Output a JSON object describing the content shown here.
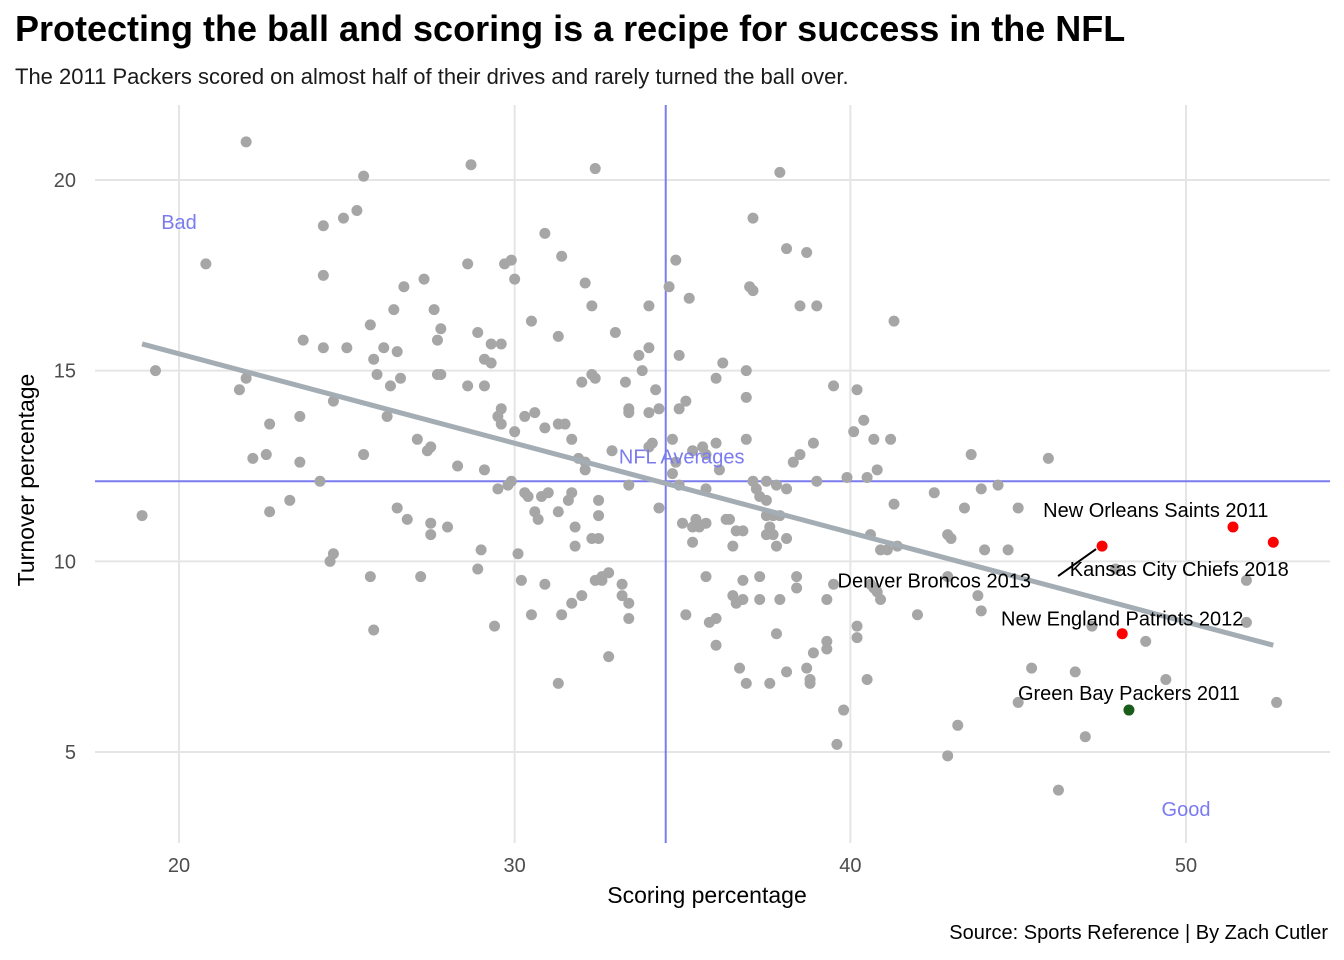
{
  "header": {
    "title": "Protecting the ball and scoring is a recipe for success in the NFL",
    "subtitle": "The 2011 Packers scored on almost half of their drives and rarely turned the ball over.",
    "caption": "Source: Sports Reference | By Zach Cutler"
  },
  "chart_data": {
    "type": "scatter",
    "xlabel": "Scoring percentage",
    "ylabel": "Turnover percentage",
    "xlim": [
      17.5,
      54.5
    ],
    "ylim": [
      2.8,
      21.7
    ],
    "x_ticks": [
      20,
      30,
      40,
      50
    ],
    "y_ticks": [
      5,
      10,
      15,
      20
    ],
    "grid": true,
    "colors": {
      "points": "#a6a6a6",
      "highlight": "#ff0000",
      "packers": "#1a5c1a",
      "trend": "#a3adb3",
      "average_lines": "#7b7bf0",
      "grid": "#e5e5e5"
    },
    "averages": {
      "x": 34.5,
      "y": 12.1,
      "label": "NFL Averages"
    },
    "trend_line": {
      "x": [
        18.9,
        52.6
      ],
      "y": [
        15.7,
        7.8
      ]
    },
    "quadrant_labels": [
      {
        "text": "Bad",
        "x": 20,
        "y": 18.9
      },
      {
        "text": "Good",
        "x": 50,
        "y": 3.5
      }
    ],
    "highlighted": [
      {
        "name": "New Orleans Saints 2011",
        "x": 51.4,
        "y": 10.9,
        "color": "#ff0000",
        "label_x": 49.1,
        "label_y": 11.35
      },
      {
        "name": "Kansas City Chiefs 2018",
        "x": 52.6,
        "y": 10.5,
        "color": "#ff0000",
        "label_x": 49.8,
        "label_y": 9.8
      },
      {
        "name": "Denver Broncos 2013",
        "x": 47.5,
        "y": 10.4,
        "color": "#ff0000",
        "label_x": 42.5,
        "label_y": 9.5
      },
      {
        "name": "New England Patriots 2012",
        "x": 48.1,
        "y": 8.1,
        "color": "#ff0000",
        "label_x": 48.1,
        "label_y": 8.5
      },
      {
        "name": "Green Bay Packers 2011",
        "x": 48.3,
        "y": 6.1,
        "color": "#1a5c1a",
        "label_x": 48.3,
        "label_y": 6.55
      }
    ],
    "points": [
      [
        18.9,
        11.2
      ],
      [
        19.3,
        15.0
      ],
      [
        20.8,
        17.8
      ],
      [
        22.0,
        21.0
      ],
      [
        21.8,
        14.5
      ],
      [
        22.0,
        14.8
      ],
      [
        22.2,
        12.7
      ],
      [
        22.6,
        12.8
      ],
      [
        22.7,
        13.6
      ],
      [
        22.7,
        11.3
      ],
      [
        23.3,
        11.6
      ],
      [
        23.6,
        13.8
      ],
      [
        23.6,
        12.6
      ],
      [
        23.7,
        15.8
      ],
      [
        24.2,
        12.1
      ],
      [
        24.3,
        18.8
      ],
      [
        24.3,
        17.5
      ],
      [
        24.3,
        15.6
      ],
      [
        24.6,
        14.2
      ],
      [
        24.5,
        10.0
      ],
      [
        24.6,
        10.2
      ],
      [
        24.9,
        19.0
      ],
      [
        25.0,
        15.6
      ],
      [
        25.3,
        19.2
      ],
      [
        25.5,
        20.1
      ],
      [
        25.5,
        12.8
      ],
      [
        25.7,
        16.2
      ],
      [
        25.7,
        9.6
      ],
      [
        25.8,
        15.3
      ],
      [
        25.8,
        8.2
      ],
      [
        25.9,
        14.9
      ],
      [
        26.1,
        15.6
      ],
      [
        26.2,
        13.8
      ],
      [
        26.3,
        14.6
      ],
      [
        26.4,
        16.6
      ],
      [
        26.5,
        15.5
      ],
      [
        26.5,
        11.4
      ],
      [
        26.6,
        14.8
      ],
      [
        26.7,
        17.2
      ],
      [
        26.8,
        11.1
      ],
      [
        27.1,
        13.2
      ],
      [
        27.2,
        9.6
      ],
      [
        27.3,
        17.4
      ],
      [
        27.4,
        12.9
      ],
      [
        27.5,
        13.0
      ],
      [
        27.5,
        10.7
      ],
      [
        27.5,
        11.0
      ],
      [
        27.6,
        16.6
      ],
      [
        27.7,
        15.8
      ],
      [
        27.7,
        14.9
      ],
      [
        27.8,
        14.9
      ],
      [
        27.8,
        16.1
      ],
      [
        28.0,
        10.9
      ],
      [
        28.3,
        12.5
      ],
      [
        28.6,
        17.8
      ],
      [
        28.6,
        14.6
      ],
      [
        28.7,
        20.4
      ],
      [
        28.9,
        16.0
      ],
      [
        28.9,
        9.8
      ],
      [
        29.0,
        10.3
      ],
      [
        29.1,
        15.3
      ],
      [
        29.1,
        12.4
      ],
      [
        29.1,
        14.6
      ],
      [
        29.3,
        15.7
      ],
      [
        29.3,
        15.2
      ],
      [
        29.4,
        8.3
      ],
      [
        29.5,
        11.9
      ],
      [
        29.5,
        13.8
      ],
      [
        29.6,
        15.7
      ],
      [
        29.6,
        14.0
      ],
      [
        29.6,
        13.6
      ],
      [
        29.7,
        17.8
      ],
      [
        29.8,
        12.0
      ],
      [
        29.9,
        17.9
      ],
      [
        29.9,
        12.1
      ],
      [
        30.0,
        17.4
      ],
      [
        30.0,
        13.4
      ],
      [
        30.1,
        10.2
      ],
      [
        30.2,
        9.5
      ],
      [
        30.3,
        11.8
      ],
      [
        30.3,
        13.8
      ],
      [
        30.4,
        11.7
      ],
      [
        30.5,
        16.3
      ],
      [
        30.5,
        8.6
      ],
      [
        30.6,
        13.9
      ],
      [
        30.6,
        11.3
      ],
      [
        30.7,
        11.1
      ],
      [
        30.8,
        11.7
      ],
      [
        30.9,
        9.4
      ],
      [
        30.9,
        18.6
      ],
      [
        30.9,
        13.5
      ],
      [
        31.0,
        11.8
      ],
      [
        31.3,
        15.9
      ],
      [
        31.3,
        13.6
      ],
      [
        31.3,
        11.3
      ],
      [
        31.3,
        6.8
      ],
      [
        31.4,
        18.0
      ],
      [
        31.4,
        8.6
      ],
      [
        31.5,
        13.6
      ],
      [
        31.6,
        11.6
      ],
      [
        31.7,
        11.8
      ],
      [
        31.7,
        13.2
      ],
      [
        31.7,
        8.9
      ],
      [
        31.8,
        10.9
      ],
      [
        31.8,
        10.4
      ],
      [
        31.9,
        12.7
      ],
      [
        32.0,
        14.7
      ],
      [
        32.0,
        9.1
      ],
      [
        32.1,
        12.6
      ],
      [
        32.1,
        12.4
      ],
      [
        32.1,
        17.3
      ],
      [
        32.3,
        16.7
      ],
      [
        32.3,
        14.9
      ],
      [
        32.3,
        10.6
      ],
      [
        32.4,
        20.3
      ],
      [
        32.4,
        14.8
      ],
      [
        32.4,
        9.5
      ],
      [
        32.5,
        11.6
      ],
      [
        32.5,
        11.2
      ],
      [
        32.5,
        10.6
      ],
      [
        32.6,
        9.6
      ],
      [
        32.6,
        9.5
      ],
      [
        32.8,
        9.7
      ],
      [
        32.8,
        7.5
      ],
      [
        32.9,
        12.9
      ],
      [
        33.0,
        16.0
      ],
      [
        33.2,
        9.4
      ],
      [
        33.2,
        9.1
      ],
      [
        33.3,
        14.7
      ],
      [
        33.4,
        13.9
      ],
      [
        33.4,
        14.0
      ],
      [
        33.4,
        12.0
      ],
      [
        33.4,
        8.9
      ],
      [
        33.4,
        8.5
      ],
      [
        33.7,
        15.4
      ],
      [
        33.8,
        15.0
      ],
      [
        34.0,
        16.7
      ],
      [
        34.0,
        15.6
      ],
      [
        34.0,
        13.0
      ],
      [
        34.0,
        13.9
      ],
      [
        34.1,
        13.1
      ],
      [
        34.2,
        14.5
      ],
      [
        34.3,
        11.4
      ],
      [
        34.3,
        14.0
      ],
      [
        34.6,
        17.2
      ],
      [
        34.7,
        13.2
      ],
      [
        34.7,
        12.3
      ],
      [
        34.8,
        17.9
      ],
      [
        34.8,
        12.6
      ],
      [
        34.9,
        15.4
      ],
      [
        34.9,
        14.0
      ],
      [
        34.9,
        12.0
      ],
      [
        35.0,
        11.0
      ],
      [
        35.1,
        8.6
      ],
      [
        35.1,
        14.2
      ],
      [
        35.2,
        16.9
      ],
      [
        35.3,
        12.9
      ],
      [
        35.3,
        10.9
      ],
      [
        35.3,
        10.5
      ],
      [
        35.4,
        11.1
      ],
      [
        35.5,
        10.9
      ],
      [
        35.6,
        13.0
      ],
      [
        35.7,
        12.8
      ],
      [
        35.7,
        11.9
      ],
      [
        35.7,
        11.0
      ],
      [
        35.7,
        9.6
      ],
      [
        35.8,
        8.4
      ],
      [
        36.0,
        13.1
      ],
      [
        36.0,
        14.8
      ],
      [
        36.0,
        7.8
      ],
      [
        36.0,
        8.5
      ],
      [
        36.1,
        12.4
      ],
      [
        36.2,
        15.2
      ],
      [
        36.3,
        11.1
      ],
      [
        36.4,
        11.1
      ],
      [
        36.5,
        10.4
      ],
      [
        36.5,
        9.1
      ],
      [
        36.6,
        10.8
      ],
      [
        36.6,
        8.9
      ],
      [
        36.7,
        7.2
      ],
      [
        36.8,
        10.8
      ],
      [
        36.8,
        9.5
      ],
      [
        36.8,
        9.0
      ],
      [
        36.9,
        15.0
      ],
      [
        36.9,
        14.3
      ],
      [
        36.9,
        13.2
      ],
      [
        36.9,
        6.8
      ],
      [
        37.0,
        17.2
      ],
      [
        37.1,
        17.1
      ],
      [
        37.1,
        19.0
      ],
      [
        37.1,
        12.1
      ],
      [
        37.2,
        11.9
      ],
      [
        37.3,
        11.7
      ],
      [
        37.3,
        9.6
      ],
      [
        37.3,
        9.0
      ],
      [
        37.5,
        12.1
      ],
      [
        37.5,
        11.6
      ],
      [
        37.5,
        10.7
      ],
      [
        37.5,
        11.2
      ],
      [
        37.6,
        6.8
      ],
      [
        37.6,
        10.9
      ],
      [
        37.7,
        10.7
      ],
      [
        37.7,
        11.2
      ],
      [
        37.8,
        12.0
      ],
      [
        37.8,
        10.4
      ],
      [
        37.8,
        8.1
      ],
      [
        37.9,
        20.2
      ],
      [
        37.9,
        11.2
      ],
      [
        37.9,
        9.0
      ],
      [
        38.1,
        18.2
      ],
      [
        38.1,
        11.9
      ],
      [
        38.1,
        10.6
      ],
      [
        38.1,
        7.1
      ],
      [
        38.3,
        12.6
      ],
      [
        38.4,
        9.6
      ],
      [
        38.4,
        9.3
      ],
      [
        38.5,
        12.8
      ],
      [
        38.5,
        16.7
      ],
      [
        38.7,
        18.1
      ],
      [
        38.7,
        7.2
      ],
      [
        38.8,
        6.9
      ],
      [
        38.8,
        6.8
      ],
      [
        38.9,
        7.6
      ],
      [
        38.9,
        13.1
      ],
      [
        39.0,
        12.1
      ],
      [
        39.0,
        16.7
      ],
      [
        39.3,
        7.9
      ],
      [
        39.3,
        9.0
      ],
      [
        39.3,
        7.7
      ],
      [
        39.5,
        9.4
      ],
      [
        39.5,
        14.6
      ],
      [
        39.6,
        5.2
      ],
      [
        39.8,
        6.1
      ],
      [
        39.9,
        12.2
      ],
      [
        40.1,
        13.4
      ],
      [
        40.2,
        14.5
      ],
      [
        40.2,
        8.3
      ],
      [
        40.2,
        8.0
      ],
      [
        40.4,
        13.7
      ],
      [
        40.5,
        6.9
      ],
      [
        40.5,
        12.2
      ],
      [
        40.6,
        9.4
      ],
      [
        40.6,
        10.7
      ],
      [
        40.7,
        9.3
      ],
      [
        40.7,
        13.2
      ],
      [
        40.8,
        9.2
      ],
      [
        40.8,
        12.4
      ],
      [
        40.9,
        9.0
      ],
      [
        40.9,
        10.3
      ],
      [
        41.1,
        10.3
      ],
      [
        41.3,
        11.5
      ],
      [
        41.4,
        10.4
      ],
      [
        41.2,
        13.2
      ],
      [
        41.3,
        16.3
      ],
      [
        42.0,
        8.6
      ],
      [
        42.5,
        11.8
      ],
      [
        42.9,
        4.9
      ],
      [
        42.9,
        10.7
      ],
      [
        42.9,
        9.6
      ],
      [
        43.0,
        10.6
      ],
      [
        43.2,
        5.7
      ],
      [
        43.4,
        11.4
      ],
      [
        43.6,
        12.8
      ],
      [
        43.8,
        9.1
      ],
      [
        43.9,
        11.9
      ],
      [
        43.9,
        8.7
      ],
      [
        44.0,
        10.3
      ],
      [
        44.4,
        12.0
      ],
      [
        44.7,
        10.3
      ],
      [
        45.0,
        11.4
      ],
      [
        45.0,
        6.3
      ],
      [
        45.4,
        7.2
      ],
      [
        45.9,
        12.7
      ],
      [
        46.2,
        4.0
      ],
      [
        46.7,
        7.1
      ],
      [
        47.0,
        5.4
      ],
      [
        47.2,
        8.3
      ],
      [
        47.9,
        9.8
      ],
      [
        48.8,
        7.9
      ],
      [
        49.4,
        6.9
      ],
      [
        51.8,
        9.5
      ],
      [
        51.8,
        8.4
      ],
      [
        52.7,
        6.3
      ]
    ]
  }
}
